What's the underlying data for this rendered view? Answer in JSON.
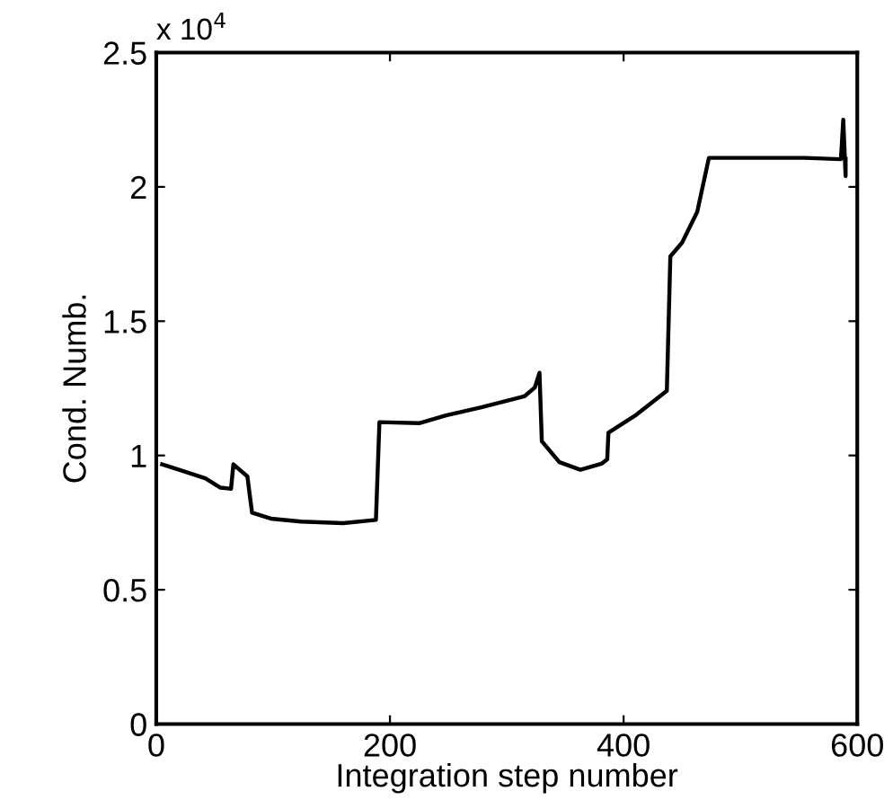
{
  "chart_data": {
    "type": "line",
    "xlabel": "Integration step number",
    "ylabel": "Cond. Numb.",
    "annotations": [
      "x 10$^{4}$"
    ],
    "series": [
      {
        "color": "#000000",
        "x": [
          5,
          16,
          42,
          55,
          64,
          66,
          78,
          80,
          82,
          98,
          124,
          160,
          188,
          191,
          225,
          248,
          279,
          315,
          324,
          328,
          330,
          345,
          363,
          381,
          386,
          387,
          411,
          437,
          440,
          450,
          463,
          473,
          555,
          586,
          588,
          590,
          590
        ],
        "values": [
          0.967,
          0.952,
          0.915,
          0.88,
          0.876,
          0.967,
          0.922,
          0.853,
          0.787,
          0.765,
          0.754,
          0.748,
          0.76,
          1.124,
          1.12,
          1.149,
          1.18,
          1.22,
          1.253,
          1.308,
          1.053,
          0.975,
          0.947,
          0.969,
          0.986,
          1.085,
          1.152,
          1.241,
          1.741,
          1.792,
          1.907,
          2.108,
          2.108,
          2.103,
          2.25,
          2.04,
          2.104
        ]
      }
    ],
    "xlim": [
      0,
      600
    ],
    "xticks": [
      0,
      200,
      400,
      600
    ],
    "ylim": [
      0,
      2.5
    ],
    "yticks": [
      0,
      0.5,
      1,
      1.5,
      2,
      2.5
    ],
    "grid": false,
    "legend": false,
    "marker": "none",
    "line_style": "solid"
  }
}
